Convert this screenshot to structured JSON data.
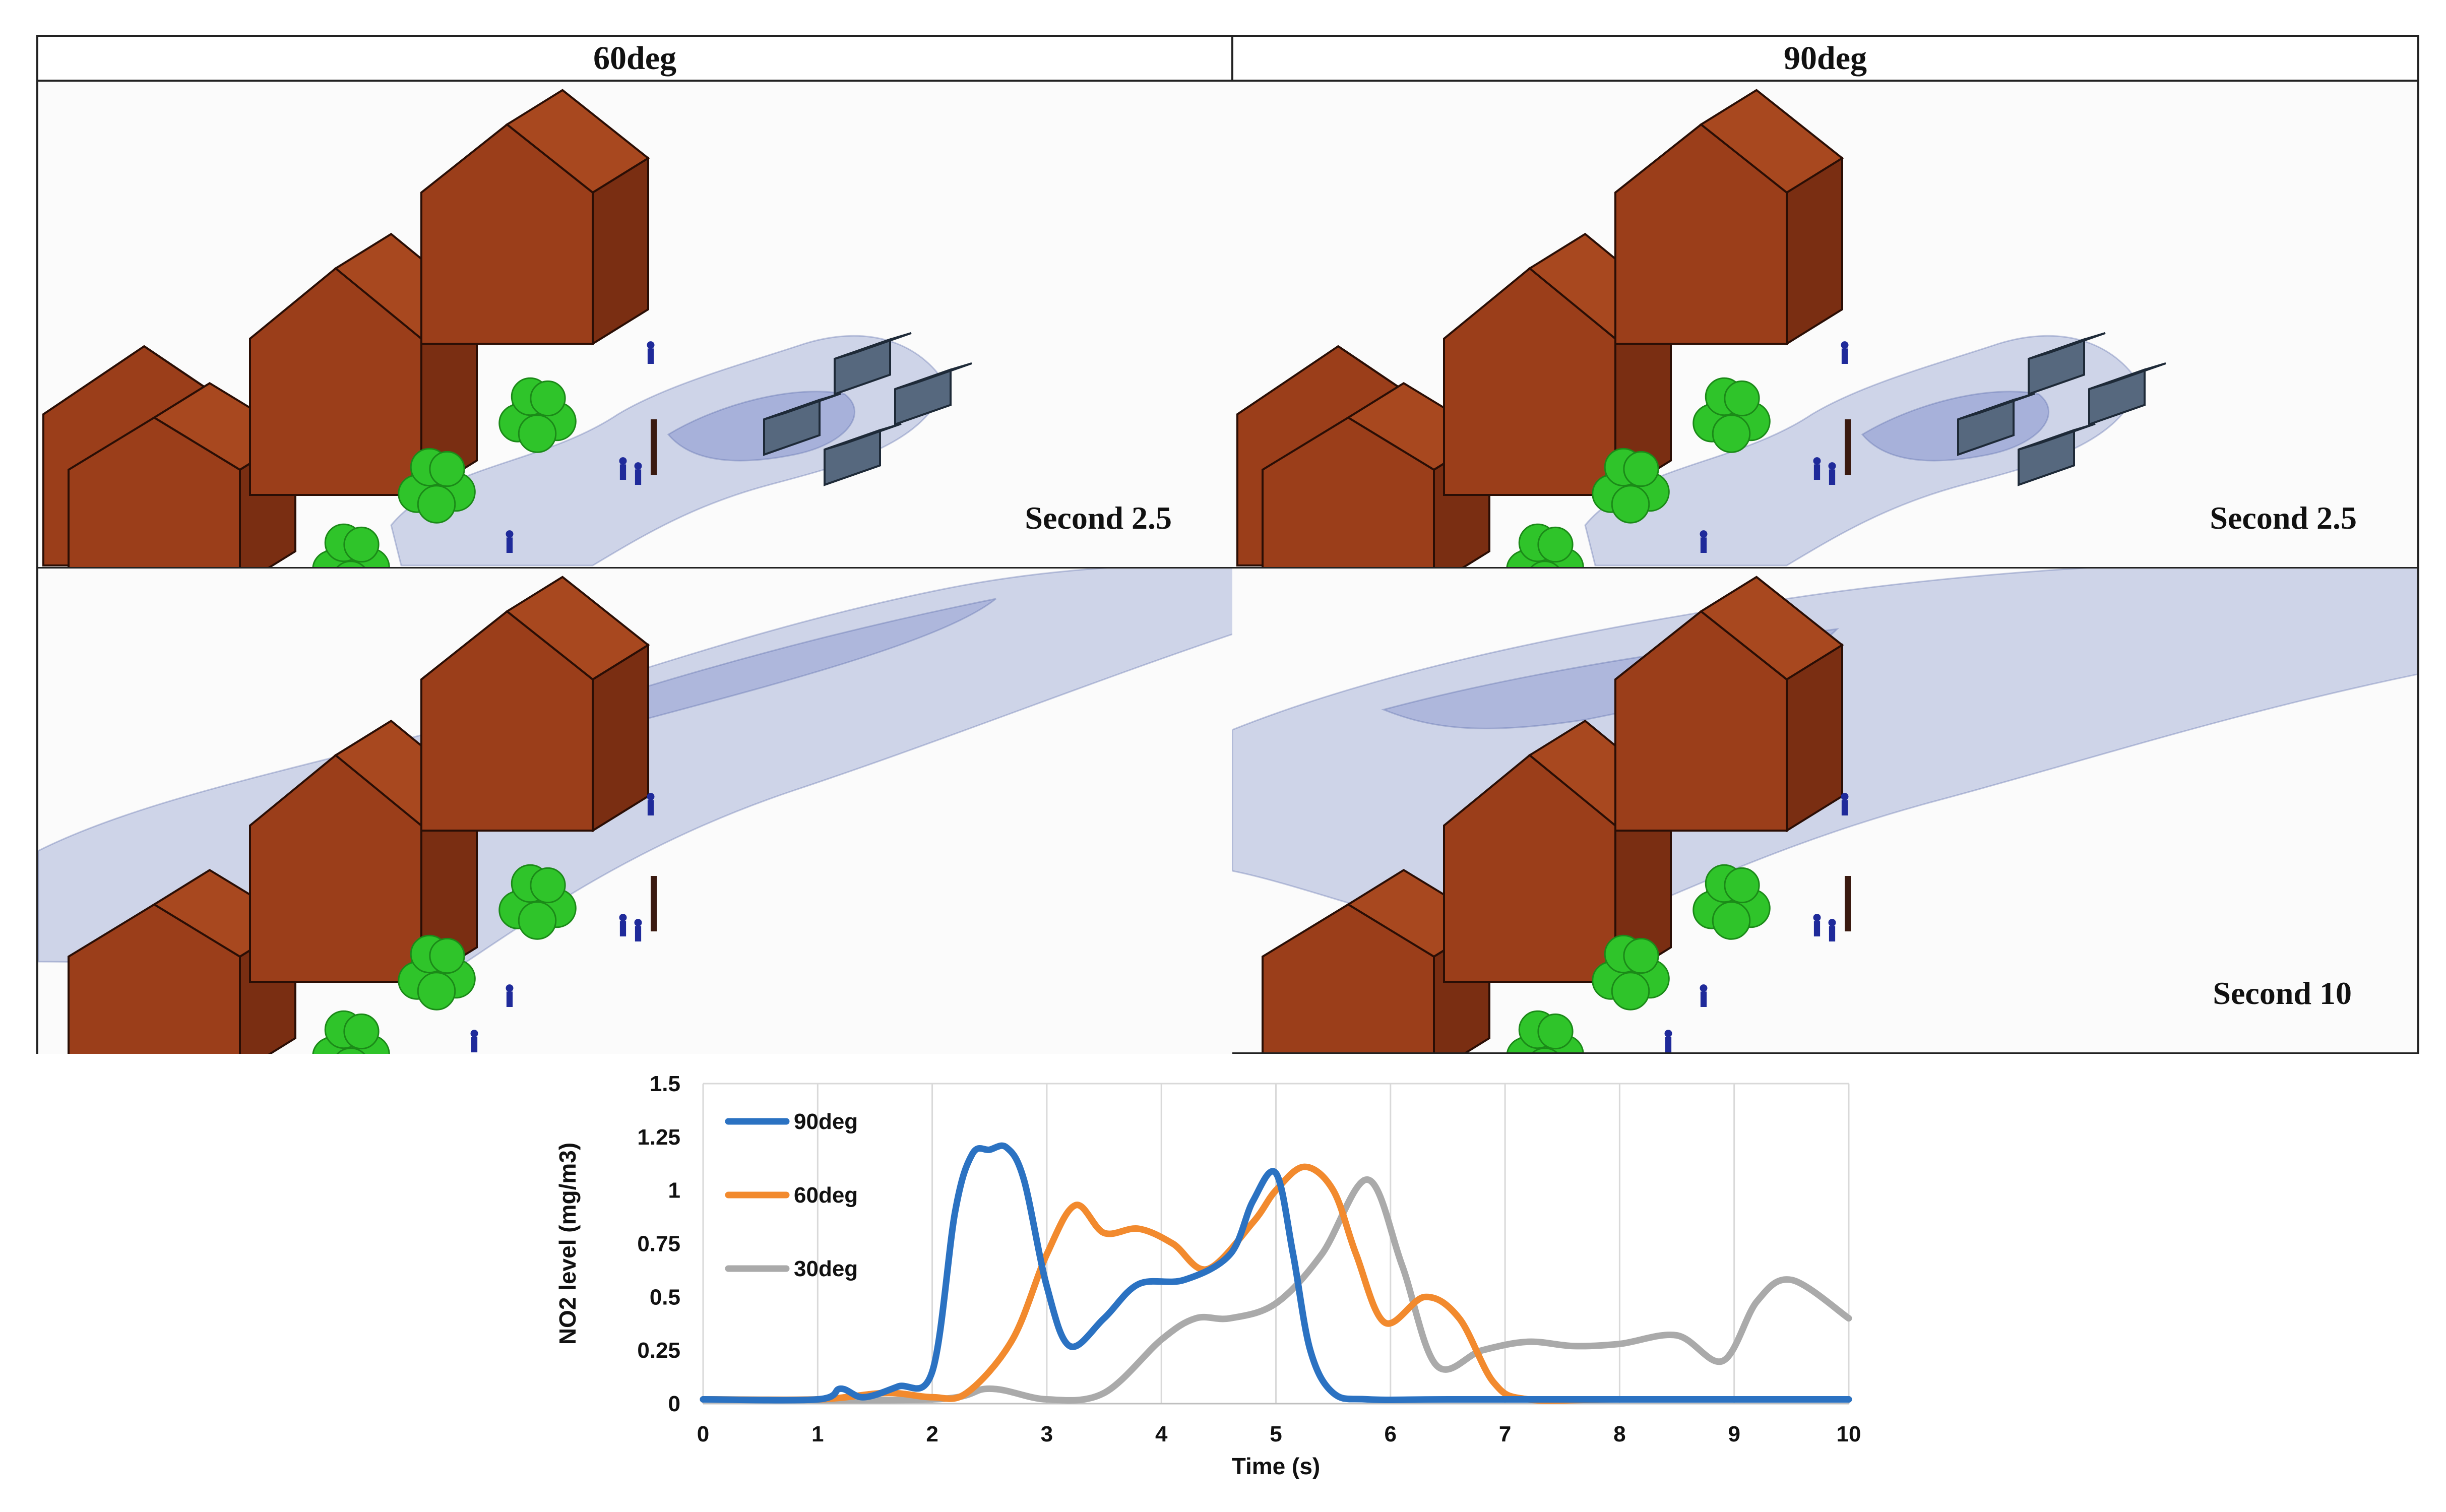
{
  "figure": {
    "columns": [
      {
        "label": "60deg"
      },
      {
        "label": "90deg"
      }
    ],
    "panels": [
      {
        "caption": "Second 2.5"
      },
      {
        "caption": "Second 2.5"
      },
      {
        "caption": ""
      },
      {
        "caption": "Second 10"
      }
    ],
    "colors": {
      "house_front": "#9b3e1a",
      "house_side": "#7a2e12",
      "house_roof": "#a8481f",
      "tree": "#2fc42a",
      "plume": "#aab4d8",
      "plume_dark": "#5a6aa8",
      "car": "#56687e",
      "person": "#1f2a9a"
    }
  },
  "chart_data": {
    "type": "line",
    "title": "",
    "xlabel": "Time (s)",
    "ylabel": "NO2 level (mg/m3)",
    "xlim": [
      0,
      10
    ],
    "ylim": [
      0,
      1.5
    ],
    "xticks": [
      "0",
      "1",
      "2",
      "3",
      "4",
      "5",
      "6",
      "7",
      "8",
      "9",
      "10"
    ],
    "yticks": [
      "0",
      "0.25",
      "0.5",
      "0.75",
      "1",
      "1.25",
      "1.5"
    ],
    "grid": "vertical",
    "legend_position": "top-left",
    "series": [
      {
        "name": "90deg",
        "color": "#2b72c2",
        "x": [
          0,
          1.0,
          1.2,
          1.4,
          1.7,
          2.0,
          2.2,
          2.35,
          2.5,
          2.65,
          2.8,
          3.0,
          3.2,
          3.5,
          3.8,
          4.2,
          4.6,
          4.8,
          5.0,
          5.15,
          5.3,
          5.5,
          5.8,
          6.5,
          8,
          10
        ],
        "y": [
          0.02,
          0.02,
          0.07,
          0.03,
          0.08,
          0.15,
          0.9,
          1.17,
          1.19,
          1.2,
          1.05,
          0.55,
          0.27,
          0.4,
          0.56,
          0.58,
          0.7,
          0.95,
          1.08,
          0.7,
          0.25,
          0.05,
          0.02,
          0.02,
          0.02,
          0.02
        ]
      },
      {
        "name": "60deg",
        "color": "#f28a2e",
        "x": [
          0,
          1.0,
          1.6,
          2.0,
          2.3,
          2.7,
          3.0,
          3.25,
          3.5,
          3.8,
          4.1,
          4.4,
          4.8,
          5.0,
          5.25,
          5.5,
          5.7,
          5.95,
          6.3,
          6.6,
          6.9,
          7.2,
          8,
          10
        ],
        "y": [
          0.02,
          0.02,
          0.05,
          0.03,
          0.05,
          0.3,
          0.7,
          0.93,
          0.8,
          0.82,
          0.75,
          0.63,
          0.85,
          1.0,
          1.11,
          1.0,
          0.7,
          0.38,
          0.5,
          0.4,
          0.1,
          0.02,
          0.02,
          0.02
        ]
      },
      {
        "name": "30deg",
        "color": "#aaaaaa",
        "x": [
          0,
          2.0,
          2.5,
          3.0,
          3.5,
          4.0,
          4.3,
          4.6,
          5.0,
          5.4,
          5.8,
          6.1,
          6.4,
          6.8,
          7.2,
          7.6,
          8.0,
          8.5,
          8.9,
          9.2,
          9.5,
          10
        ],
        "y": [
          0.02,
          0.02,
          0.07,
          0.02,
          0.05,
          0.3,
          0.4,
          0.4,
          0.47,
          0.7,
          1.05,
          0.65,
          0.18,
          0.25,
          0.29,
          0.27,
          0.28,
          0.32,
          0.2,
          0.48,
          0.58,
          0.4
        ]
      }
    ]
  }
}
